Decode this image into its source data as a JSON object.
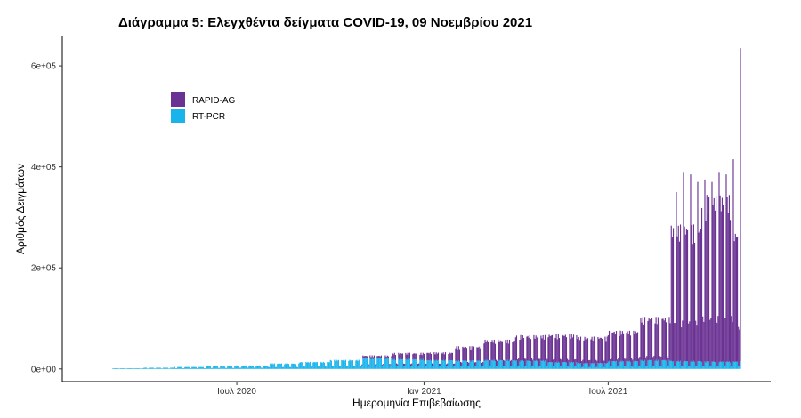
{
  "chart_data": {
    "type": "bar",
    "stacked": true,
    "title": "Διάγραμμα 5: Ελεγχθέντα δείγματα COVID-19, 09 Νοεμβρίου 2021",
    "xlabel": "Ημερομηνία Επιβεβαίωσης",
    "ylabel": "Αριθμός Δειγμάτων",
    "x_range": [
      "2020-02-26",
      "2021-11-08"
    ],
    "ylim": [
      -25000,
      660000
    ],
    "y_ticks": [
      {
        "value": 0,
        "label": "0e+00"
      },
      {
        "value": 200000,
        "label": "2e+05"
      },
      {
        "value": 400000,
        "label": "4e+05"
      },
      {
        "value": 600000,
        "label": "6e+05"
      }
    ],
    "x_ticks": [
      {
        "date": "2020-07-01",
        "label": "Ιουλ 2020"
      },
      {
        "date": "2021-01-01",
        "label": "Ιαν 2021"
      },
      {
        "date": "2021-07-01",
        "label": "Ιουλ 2021"
      }
    ],
    "legend": {
      "position": "top-left",
      "entries": [
        {
          "name": "RAPID-AG",
          "color": "#6A3293"
        },
        {
          "name": "RT-PCR",
          "color": "#19B4EC"
        }
      ]
    },
    "grid": false,
    "series": [
      {
        "name": "RAPID-AG",
        "color": "#6A3293",
        "values_by_month": [
          {
            "month": "2020-03",
            "weekday": 0,
            "weekend": 0
          },
          {
            "month": "2020-04",
            "weekday": 0,
            "weekend": 0
          },
          {
            "month": "2020-05",
            "weekday": 0,
            "weekend": 0
          },
          {
            "month": "2020-06",
            "weekday": 0,
            "weekend": 0
          },
          {
            "month": "2020-07",
            "weekday": 0,
            "weekend": 0
          },
          {
            "month": "2020-08",
            "weekday": 0,
            "weekend": 0
          },
          {
            "month": "2020-09",
            "weekday": 0,
            "weekend": 0
          },
          {
            "month": "2020-10",
            "weekday": 0,
            "weekend": 0
          },
          {
            "month": "2020-11",
            "weekday": 5000,
            "weekend": 2000
          },
          {
            "month": "2020-12",
            "weekday": 12000,
            "weekend": 4000
          },
          {
            "month": "2021-01",
            "weekday": 15000,
            "weekend": 5000
          },
          {
            "month": "2021-02",
            "weekday": 28000,
            "weekend": 8000
          },
          {
            "month": "2021-03",
            "weekday": 40000,
            "weekend": 12000
          },
          {
            "month": "2021-04",
            "weekday": 50000,
            "weekend": 15000
          },
          {
            "month": "2021-05",
            "weekday": 55000,
            "weekend": 15000
          },
          {
            "month": "2021-06",
            "weekday": 52000,
            "weekend": 14000
          },
          {
            "month": "2021-07",
            "weekday": 60000,
            "weekend": 16000
          },
          {
            "month": "2021-08",
            "weekday": 85000,
            "weekend": 20000
          },
          {
            "month": "2021-09",
            "weekday": 270000,
            "weekend": 90000
          },
          {
            "month": "2021-10",
            "weekday": 330000,
            "weekend": 100000
          },
          {
            "month": "2021-11",
            "weekday": 260000,
            "weekend": 80000
          }
        ]
      },
      {
        "name": "RT-PCR",
        "color": "#19B4EC",
        "values_by_month": [
          {
            "month": "2020-03",
            "weekday": 1500,
            "weekend": 600
          },
          {
            "month": "2020-04",
            "weekday": 2500,
            "weekend": 1000
          },
          {
            "month": "2020-05",
            "weekday": 4000,
            "weekend": 1500
          },
          {
            "month": "2020-06",
            "weekday": 5500,
            "weekend": 2000
          },
          {
            "month": "2020-07",
            "weekday": 7000,
            "weekend": 2500
          },
          {
            "month": "2020-08",
            "weekday": 11000,
            "weekend": 4000
          },
          {
            "month": "2020-09",
            "weekday": 14000,
            "weekend": 5000
          },
          {
            "month": "2020-10",
            "weekday": 18000,
            "weekend": 6000
          },
          {
            "month": "2020-11",
            "weekday": 22000,
            "weekend": 8000
          },
          {
            "month": "2020-12",
            "weekday": 20000,
            "weekend": 7000
          },
          {
            "month": "2021-01",
            "weekday": 18000,
            "weekend": 6000
          },
          {
            "month": "2021-02",
            "weekday": 17000,
            "weekend": 6000
          },
          {
            "month": "2021-03",
            "weekday": 18000,
            "weekend": 6000
          },
          {
            "month": "2021-04",
            "weekday": 17000,
            "weekend": 6000
          },
          {
            "month": "2021-05",
            "weekday": 14000,
            "weekend": 5000
          },
          {
            "month": "2021-06",
            "weekday": 12000,
            "weekend": 4000
          },
          {
            "month": "2021-07",
            "weekday": 16000,
            "weekend": 5000
          },
          {
            "month": "2021-08",
            "weekday": 18000,
            "weekend": 6000
          },
          {
            "month": "2021-09",
            "weekday": 16000,
            "weekend": 6000
          },
          {
            "month": "2021-10",
            "weekday": 15000,
            "weekend": 5000
          },
          {
            "month": "2021-11",
            "weekday": 15000,
            "weekend": 5000
          }
        ]
      }
    ],
    "peak_values": [
      {
        "date": "2021-09-06",
        "series": "RAPID-AG",
        "value": 350000
      },
      {
        "date": "2021-09-13",
        "series": "RAPID-AG",
        "value": 390000
      },
      {
        "date": "2021-09-20",
        "series": "RAPID-AG",
        "value": 385000
      },
      {
        "date": "2021-09-27",
        "series": "RAPID-AG",
        "value": 370000
      },
      {
        "date": "2021-10-04",
        "series": "RAPID-AG",
        "value": 375000
      },
      {
        "date": "2021-10-11",
        "series": "RAPID-AG",
        "value": 370000
      },
      {
        "date": "2021-10-18",
        "series": "RAPID-AG",
        "value": 390000
      },
      {
        "date": "2021-10-25",
        "series": "RAPID-AG",
        "value": 385000
      },
      {
        "date": "2021-11-01",
        "series": "RAPID-AG",
        "value": 415000
      },
      {
        "date": "2021-11-08",
        "series": "RAPID-AG",
        "value": 635000
      }
    ]
  }
}
